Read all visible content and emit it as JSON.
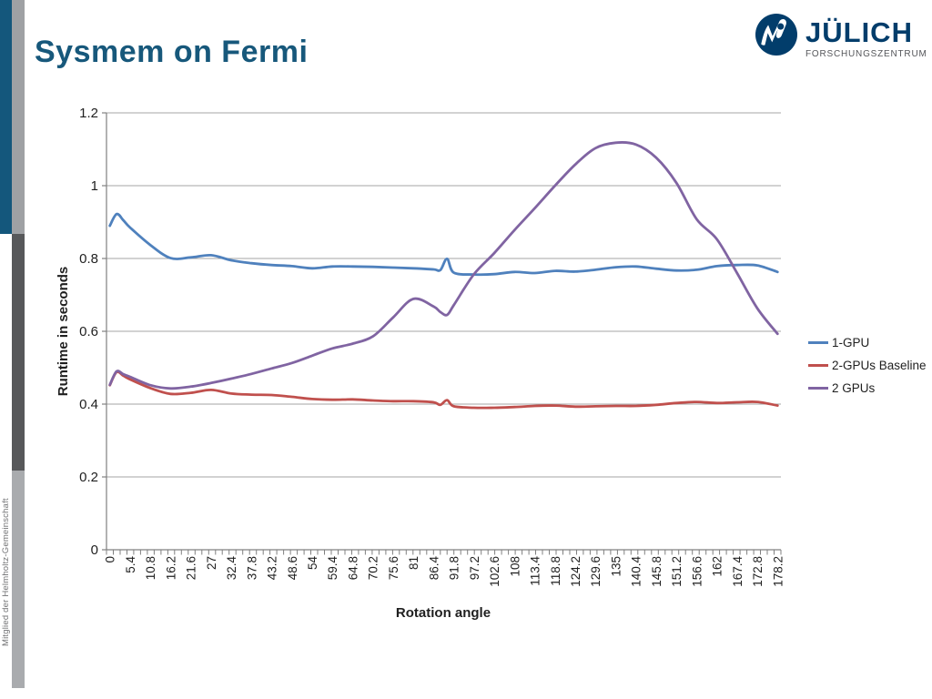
{
  "slide": {
    "title": "Sysmem on Fermi",
    "footer_vertical": "Mitglied der Helmholtz-Gemeinschaft"
  },
  "logo": {
    "name": "JÜLICH",
    "subtitle": "FORSCHUNGSZENTRUM"
  },
  "colors": {
    "title": "#17587B",
    "accent_bar_blue": "#14577C",
    "sidebar_gray_light": "#9FA1A4",
    "sidebar_gray_dark": "#57585A",
    "logo_blue": "#023D6B",
    "gridline": "#A6A6A6",
    "axis": "#808080",
    "chart_text": "#1F1F1F"
  },
  "chart_data": {
    "type": "line",
    "title": "",
    "xlabel": "Rotation angle",
    "ylabel": "Runtime in seconds",
    "ylim": [
      0,
      1.2
    ],
    "ytick_values": [
      0,
      0.2,
      0.4,
      0.6,
      0.8,
      1,
      1.2
    ],
    "ytick_labels": [
      "0",
      "0.2",
      "0.4",
      "0.6",
      "0.8",
      "1",
      "1.2"
    ],
    "x_max": 178.2,
    "x_label_step": 5.4,
    "x_minor_tick_step": 1.8,
    "xtick_labels": [
      "0",
      "5.4",
      "10.8",
      "16.2",
      "21.6",
      "27",
      "32.4",
      "37.8",
      "43.2",
      "48.6",
      "54",
      "59.4",
      "64.8",
      "70.2",
      "75.6",
      "81",
      "86.4",
      "91.8",
      "97.2",
      "102.6",
      "108",
      "113.4",
      "118.8",
      "124.2",
      "129.6",
      "135",
      "140.4",
      "145.8",
      "151.2",
      "156.6",
      "162",
      "167.4",
      "172.8",
      "178.2"
    ],
    "grid": true,
    "legend_position": "right",
    "x": [
      0,
      1.8,
      3.6,
      5.4,
      10.8,
      16.2,
      21.6,
      27,
      32.4,
      37.8,
      43.2,
      48.6,
      54,
      59.4,
      64.8,
      70.2,
      75.6,
      81,
      86.4,
      88.2,
      90,
      91.8,
      97.2,
      102.6,
      108,
      113.4,
      118.8,
      124.2,
      129.6,
      135,
      140.4,
      145.8,
      151.2,
      156.6,
      162,
      167.4,
      172.8,
      178.2
    ],
    "series": [
      {
        "name": "1-GPU",
        "color": "#4F81BD",
        "values": [
          0.89,
          0.922,
          0.905,
          0.885,
          0.837,
          0.801,
          0.803,
          0.809,
          0.795,
          0.787,
          0.782,
          0.779,
          0.773,
          0.778,
          0.778,
          0.777,
          0.775,
          0.773,
          0.77,
          0.768,
          0.799,
          0.761,
          0.756,
          0.757,
          0.763,
          0.76,
          0.766,
          0.764,
          0.769,
          0.776,
          0.778,
          0.772,
          0.767,
          0.769,
          0.779,
          0.782,
          0.781,
          0.763
        ]
      },
      {
        "name": "2-GPUs Baseline",
        "color": "#C0504D",
        "values": [
          0.452,
          0.488,
          0.478,
          0.468,
          0.444,
          0.428,
          0.431,
          0.439,
          0.429,
          0.426,
          0.425,
          0.42,
          0.414,
          0.412,
          0.413,
          0.41,
          0.408,
          0.408,
          0.405,
          0.398,
          0.411,
          0.394,
          0.39,
          0.39,
          0.392,
          0.395,
          0.396,
          0.393,
          0.394,
          0.395,
          0.395,
          0.398,
          0.403,
          0.406,
          0.403,
          0.405,
          0.406,
          0.396
        ]
      },
      {
        "name": "2 GPUs",
        "color": "#8064A2",
        "values": [
          0.453,
          0.49,
          0.482,
          0.475,
          0.452,
          0.443,
          0.448,
          0.458,
          0.47,
          0.483,
          0.498,
          0.513,
          0.533,
          0.553,
          0.566,
          0.586,
          0.638,
          0.689,
          0.668,
          0.653,
          0.645,
          0.672,
          0.757,
          0.815,
          0.878,
          0.938,
          1.0,
          1.058,
          1.103,
          1.118,
          1.113,
          1.077,
          1.008,
          0.908,
          0.853,
          0.76,
          0.663,
          0.593
        ]
      }
    ]
  }
}
